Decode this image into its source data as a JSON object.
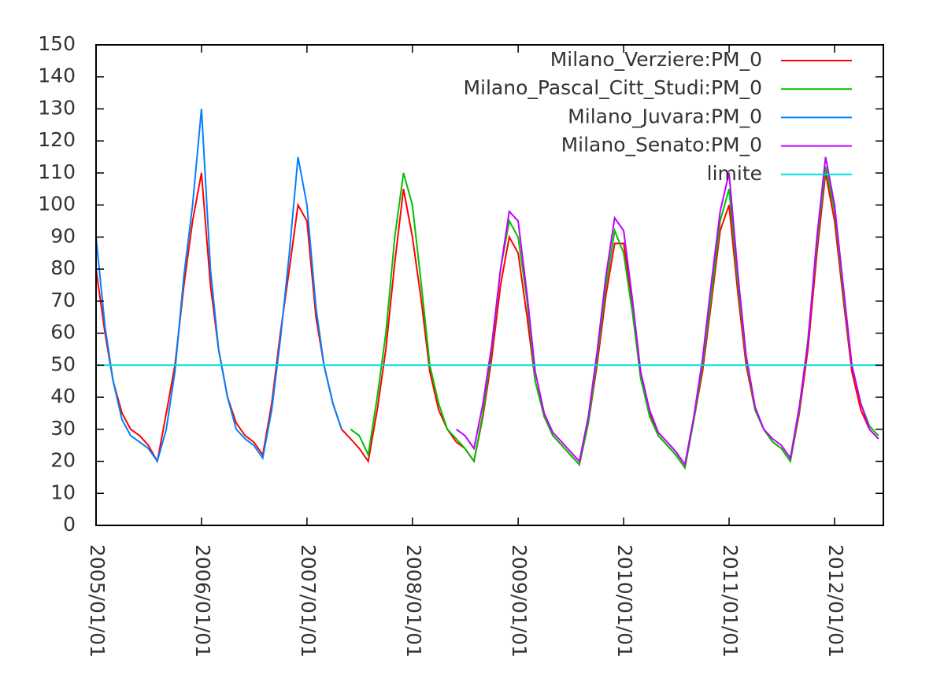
{
  "chart_data": {
    "type": "line",
    "x": [
      "2005/01/01",
      "2005/02/01",
      "2005/03/01",
      "2005/04/01",
      "2005/05/01",
      "2005/06/01",
      "2005/07/01",
      "2005/08/01",
      "2005/09/01",
      "2005/10/01",
      "2005/11/01",
      "2005/12/01",
      "2006/01/01",
      "2006/02/01",
      "2006/03/01",
      "2006/04/01",
      "2006/05/01",
      "2006/06/01",
      "2006/07/01",
      "2006/08/01",
      "2006/09/01",
      "2006/10/01",
      "2006/11/01",
      "2006/12/01",
      "2007/01/01",
      "2007/02/01",
      "2007/03/01",
      "2007/04/01",
      "2007/05/01",
      "2007/06/01",
      "2007/07/01",
      "2007/08/01",
      "2007/09/01",
      "2007/10/01",
      "2007/11/01",
      "2007/12/01",
      "2008/01/01",
      "2008/02/01",
      "2008/03/01",
      "2008/04/01",
      "2008/05/01",
      "2008/06/01",
      "2008/07/01",
      "2008/08/01",
      "2008/09/01",
      "2008/10/01",
      "2008/11/01",
      "2008/12/01",
      "2009/01/01",
      "2009/02/01",
      "2009/03/01",
      "2009/04/01",
      "2009/05/01",
      "2009/06/01",
      "2009/07/01",
      "2009/08/01",
      "2009/09/01",
      "2009/10/01",
      "2009/11/01",
      "2009/12/01",
      "2010/01/01",
      "2010/02/01",
      "2010/03/01",
      "2010/04/01",
      "2010/05/01",
      "2010/06/01",
      "2010/07/01",
      "2010/08/01",
      "2010/09/01",
      "2010/10/01",
      "2010/11/01",
      "2010/12/01",
      "2011/01/01",
      "2011/02/01",
      "2011/03/01",
      "2011/04/01",
      "2011/05/01",
      "2011/06/01",
      "2011/07/01",
      "2011/08/01",
      "2011/09/01",
      "2011/10/01",
      "2011/11/01",
      "2011/12/01",
      "2012/01/01",
      "2012/02/01",
      "2012/03/01",
      "2012/04/01",
      "2012/05/01",
      "2012/06/01"
    ],
    "series": [
      {
        "name": "Milano_Verziere:PM_0",
        "color": "#ff0000",
        "values": [
          80,
          60,
          45,
          35,
          30,
          28,
          25,
          20,
          35,
          50,
          75,
          95,
          110,
          75,
          55,
          40,
          32,
          28,
          26,
          22,
          38,
          60,
          80,
          100,
          95,
          65,
          50,
          38,
          30,
          27,
          24,
          20,
          36,
          55,
          82,
          105,
          90,
          70,
          48,
          36,
          30,
          26,
          24,
          20,
          34,
          52,
          75,
          90,
          85,
          65,
          45,
          34,
          28,
          25,
          22,
          19,
          32,
          50,
          72,
          88,
          88,
          68,
          46,
          35,
          28,
          25,
          22,
          18,
          33,
          48,
          70,
          92,
          100,
          72,
          50,
          36,
          30,
          26,
          24,
          20,
          35,
          55,
          85,
          110,
          95,
          70,
          48,
          36,
          30,
          27
        ]
      },
      {
        "name": "Milano_Pascal_Citt_Studi:PM_0",
        "color": "#00c000",
        "values": [
          null,
          null,
          null,
          null,
          null,
          null,
          null,
          null,
          null,
          null,
          null,
          null,
          null,
          null,
          null,
          null,
          null,
          null,
          null,
          null,
          null,
          null,
          null,
          null,
          null,
          null,
          null,
          null,
          null,
          30,
          28,
          22,
          40,
          60,
          90,
          110,
          100,
          75,
          50,
          38,
          30,
          27,
          24,
          20,
          35,
          55,
          80,
          95,
          90,
          70,
          45,
          34,
          28,
          25,
          22,
          19,
          32,
          52,
          75,
          92,
          85,
          66,
          46,
          34,
          28,
          25,
          22,
          18,
          33,
          50,
          72,
          95,
          105,
          75,
          52,
          36,
          30,
          26,
          24,
          20,
          36,
          58,
          88,
          112,
          98,
          72,
          50,
          38,
          31,
          28
        ]
      },
      {
        "name": "Milano_Juvara:PM_0",
        "color": "#0080ff",
        "values": [
          90,
          62,
          45,
          33,
          28,
          26,
          24,
          20,
          30,
          48,
          78,
          100,
          130,
          80,
          55,
          40,
          30,
          27,
          25,
          21,
          36,
          58,
          85,
          115,
          100,
          68,
          50,
          38,
          30,
          null,
          null,
          null,
          null,
          null,
          null,
          null,
          null,
          null,
          null,
          null,
          null,
          null,
          null,
          null,
          null,
          null,
          null,
          null,
          null,
          null,
          null,
          null,
          null,
          null,
          null,
          null,
          null,
          null,
          null,
          null,
          null,
          null,
          null,
          null,
          null,
          null,
          null,
          null,
          null,
          null,
          null,
          null,
          null,
          null,
          null,
          null,
          null,
          null,
          null,
          null,
          null,
          null,
          null,
          null,
          null,
          null,
          null,
          null,
          null,
          null
        ]
      },
      {
        "name": "Milano_Senato:PM_0",
        "color": "#c000ff",
        "values": [
          null,
          null,
          null,
          null,
          null,
          null,
          null,
          null,
          null,
          null,
          null,
          null,
          null,
          null,
          null,
          null,
          null,
          null,
          null,
          null,
          null,
          null,
          null,
          null,
          null,
          null,
          null,
          null,
          null,
          null,
          null,
          null,
          null,
          null,
          null,
          null,
          null,
          null,
          null,
          null,
          null,
          30,
          28,
          24,
          38,
          56,
          80,
          98,
          95,
          72,
          48,
          35,
          29,
          26,
          23,
          20,
          34,
          54,
          78,
          96,
          92,
          70,
          48,
          36,
          29,
          26,
          23,
          19,
          34,
          52,
          76,
          98,
          110,
          78,
          53,
          37,
          30,
          27,
          25,
          21,
          37,
          57,
          90,
          115,
          100,
          74,
          50,
          38,
          30,
          27
        ]
      },
      {
        "name": "limite",
        "color": "#00e0e0",
        "x": [
          "2005/01/01",
          "2012/06/18"
        ],
        "values": [
          50,
          50
        ]
      }
    ],
    "xlim": [
      "2005/01/01",
      "2012/06/18"
    ],
    "xticks": [
      "2005/01/01",
      "2006/01/01",
      "2007/01/01",
      "2008/01/01",
      "2009/01/01",
      "2010/01/01",
      "2011/01/01",
      "2012/01/01"
    ],
    "ylim": [
      0,
      150
    ],
    "yticks": [
      0,
      10,
      20,
      30,
      40,
      50,
      60,
      70,
      80,
      90,
      100,
      110,
      120,
      130,
      140,
      150
    ],
    "legend": "top-right"
  }
}
